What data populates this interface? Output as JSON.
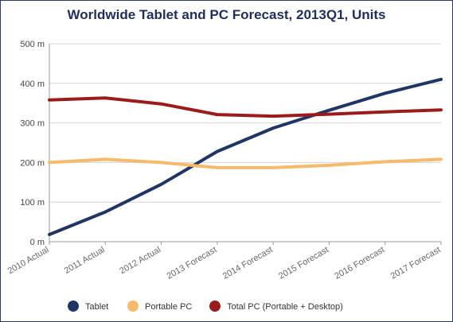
{
  "chart_data": {
    "type": "line",
    "title": "Worldwide Tablet and PC Forecast, 2013Q1, Units",
    "xlabel": "",
    "ylabel": "",
    "categories": [
      "2010 Actual",
      "2011 Actual",
      "2012 Actual",
      "2013 Forecast",
      "2014 Forecast",
      "2015 Forecast",
      "2016 Forecast",
      "2017 Forecast"
    ],
    "ylim": [
      0,
      500
    ],
    "yticks": [
      0,
      100,
      200,
      300,
      400,
      500
    ],
    "ytick_labels": [
      "0 m",
      "100 m",
      "200 m",
      "300 m",
      "400 m",
      "500 m"
    ],
    "grid": true,
    "legend_position": "bottom",
    "series": [
      {
        "name": "Tablet",
        "color": "#1f3566",
        "values": [
          18,
          75,
          145,
          228,
          287,
          332,
          375,
          410
        ]
      },
      {
        "name": "Portable PC",
        "color": "#f7b96a",
        "values": [
          200,
          208,
          200,
          187,
          187,
          193,
          202,
          208
        ]
      },
      {
        "name": "Total PC (Portable + Desktop)",
        "color": "#9b1b1b",
        "values": [
          358,
          363,
          348,
          321,
          317,
          322,
          328,
          333
        ]
      }
    ]
  }
}
